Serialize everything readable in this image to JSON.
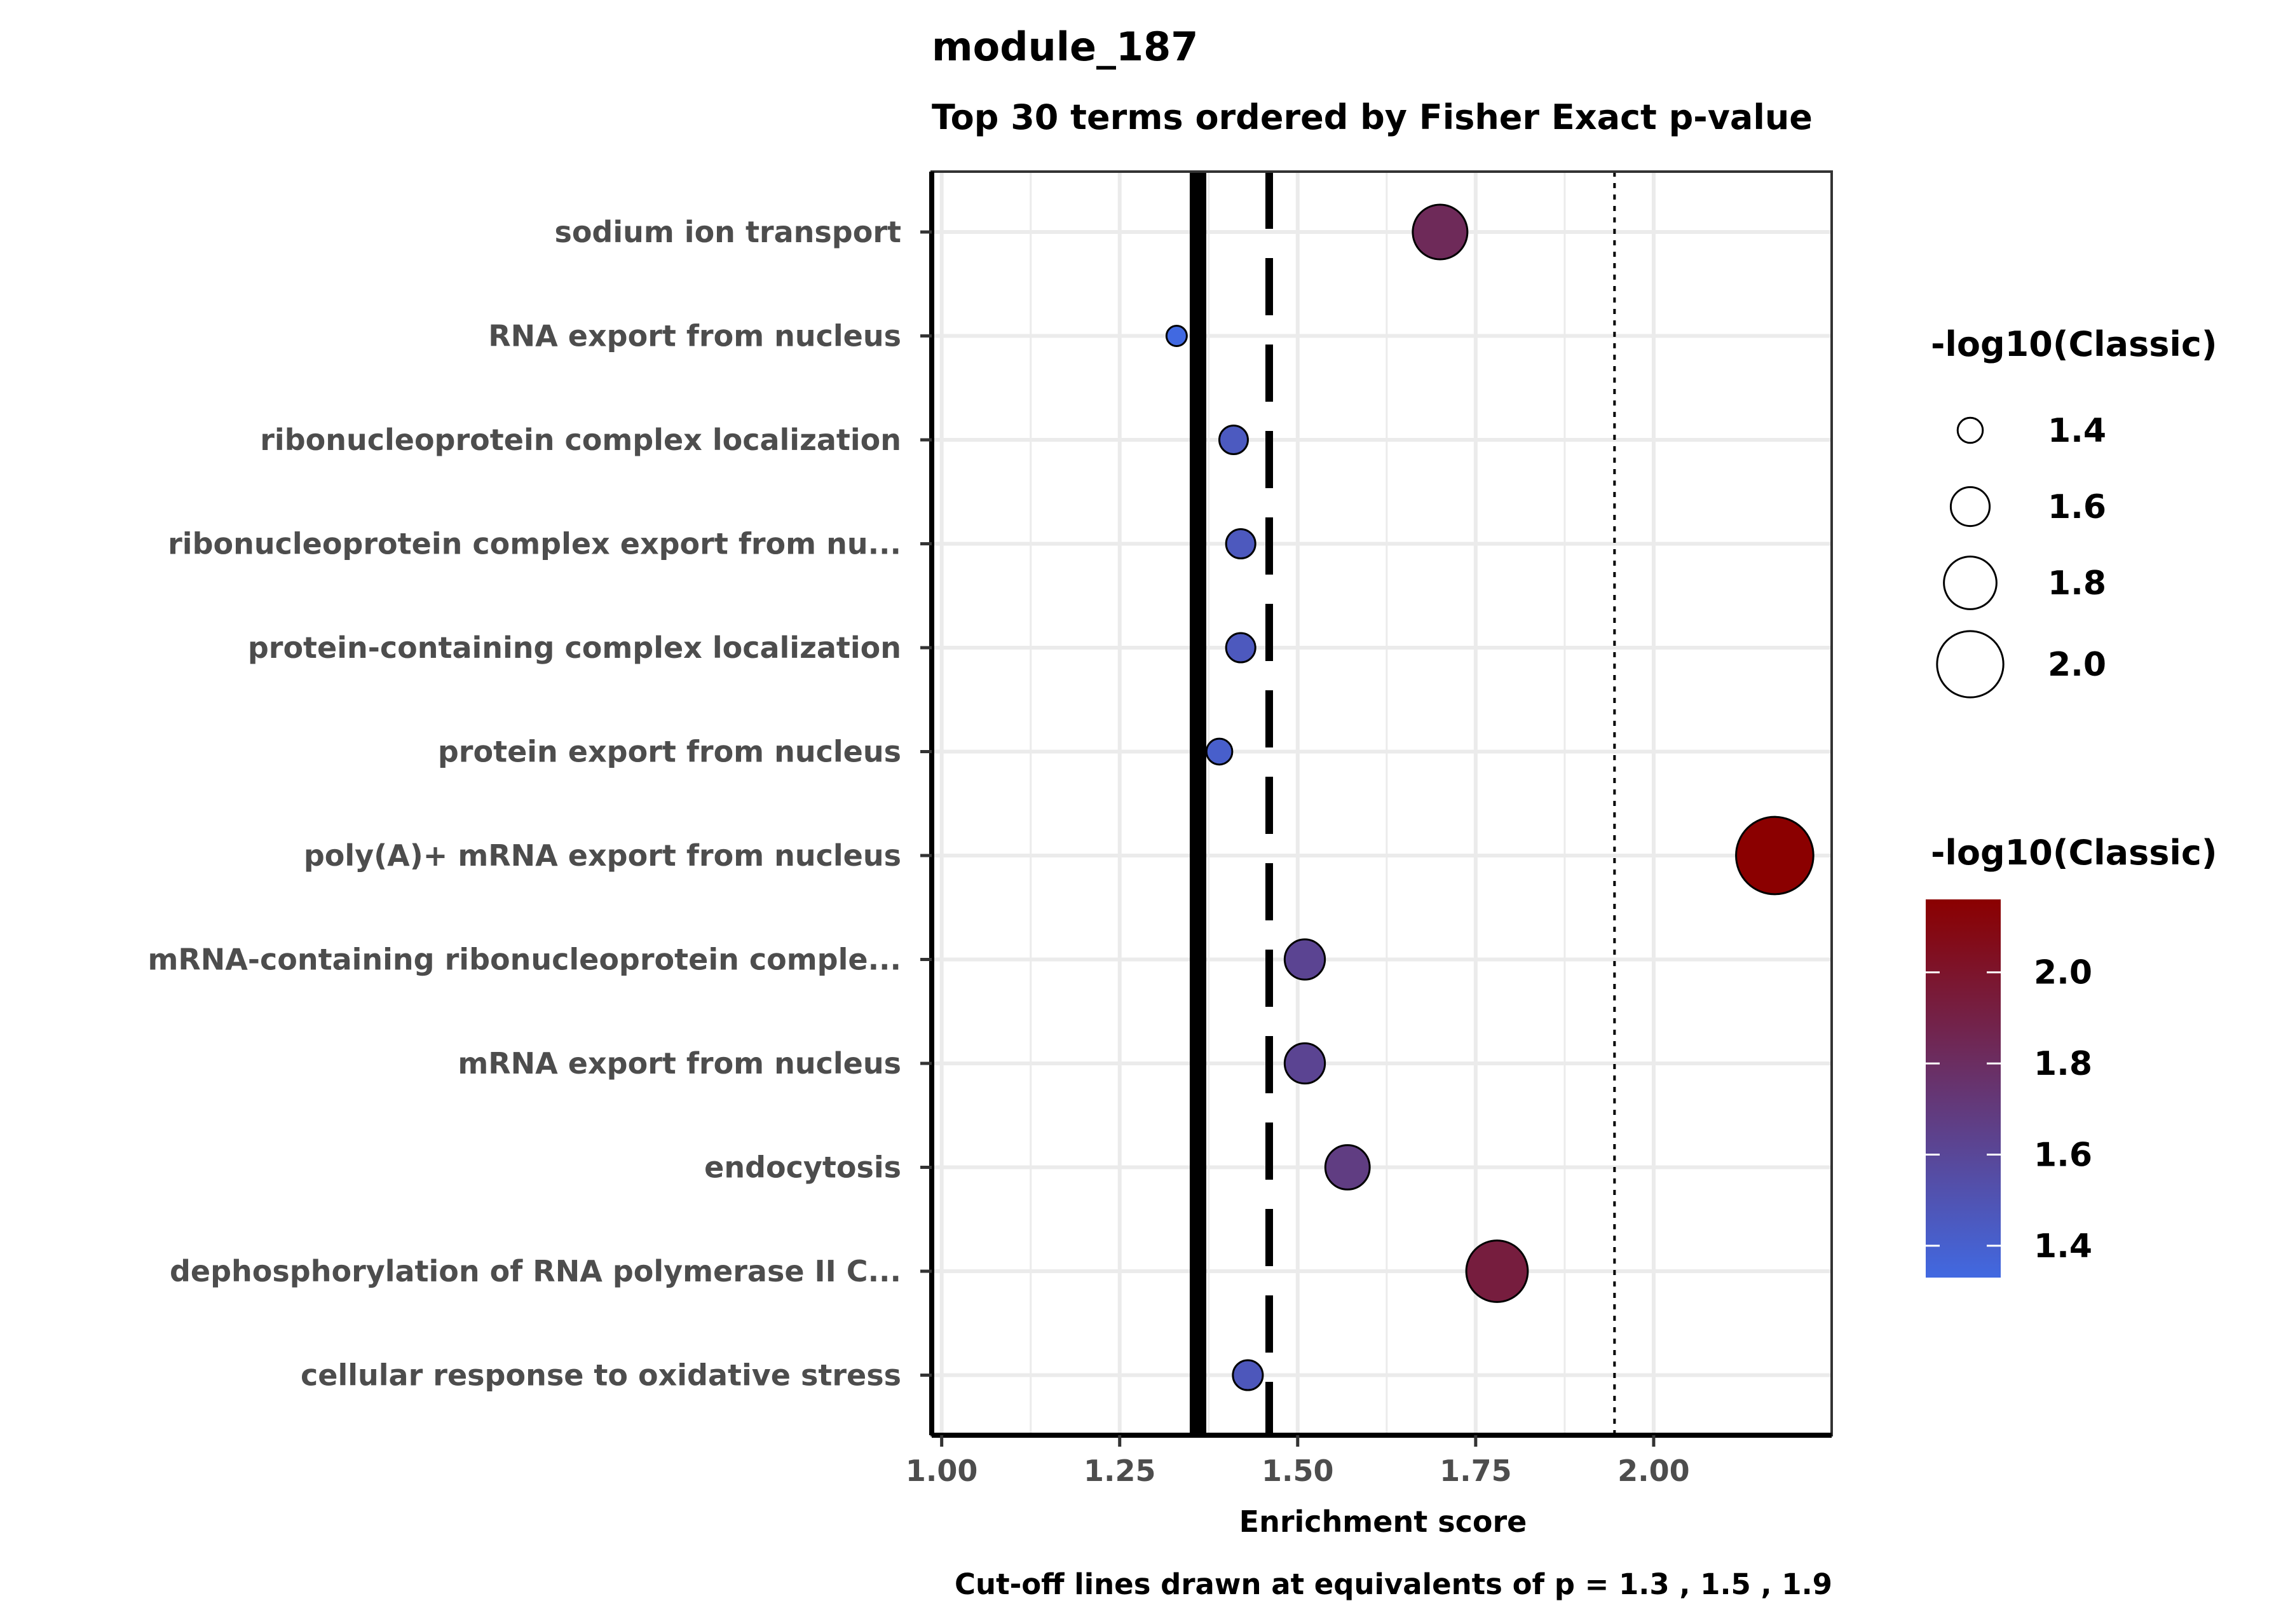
{
  "chart_data": {
    "type": "scatter",
    "title": "module_187",
    "subtitle": "Top 30 terms ordered by Fisher Exact p-value",
    "xlabel": "Enrichment score",
    "ylabel": "",
    "caption": "Cut-off lines drawn at equivalents of p = 1.3 , 1.5 , 1.9",
    "xlim": [
      0.986,
      2.25
    ],
    "xticks": [
      {
        "value": 1.0,
        "label": "1.00"
      },
      {
        "value": 1.25,
        "label": "1.25"
      },
      {
        "value": 1.5,
        "label": "1.50"
      },
      {
        "value": 1.75,
        "label": "1.75"
      },
      {
        "value": 2.0,
        "label": "2.00"
      }
    ],
    "grid": true,
    "cutoff_lines": [
      {
        "x": 1.36,
        "style": "solid"
      },
      {
        "x": 1.46,
        "style": "dashed"
      },
      {
        "x": 1.945,
        "style": "dotted"
      }
    ],
    "points": [
      {
        "term": "sodium ion transport",
        "x": 1.7,
        "neglog10": 1.83
      },
      {
        "term": "RNA export from nucleus",
        "x": 1.33,
        "neglog10": 1.33
      },
      {
        "term": "ribonucleoprotein complex localization",
        "x": 1.41,
        "neglog10": 1.45
      },
      {
        "term": "ribonucleoprotein complex export from nu...",
        "x": 1.42,
        "neglog10": 1.46
      },
      {
        "term": "protein-containing complex localization",
        "x": 1.42,
        "neglog10": 1.46
      },
      {
        "term": "protein export from nucleus",
        "x": 1.39,
        "neglog10": 1.41
      },
      {
        "term": "poly(A)+ mRNA export from nucleus",
        "x": 2.17,
        "neglog10": 2.16
      },
      {
        "term": "mRNA-containing ribonucleoprotein comple...",
        "x": 1.51,
        "neglog10": 1.62
      },
      {
        "term": "mRNA export from nucleus",
        "x": 1.51,
        "neglog10": 1.62
      },
      {
        "term": "endocytosis",
        "x": 1.57,
        "neglog10": 1.68
      },
      {
        "term": "dephosphorylation of RNA polymerase II C...",
        "x": 1.78,
        "neglog10": 1.93
      },
      {
        "term": "cellular response to oxidative stress",
        "x": 1.43,
        "neglog10": 1.47
      }
    ],
    "size_legend": {
      "title": "-log10(Classic)",
      "entries": [
        {
          "value": 1.4,
          "label": "1.4"
        },
        {
          "value": 1.6,
          "label": "1.6"
        },
        {
          "value": 1.8,
          "label": "1.8"
        },
        {
          "value": 2.0,
          "label": "2.0"
        }
      ]
    },
    "color_legend": {
      "title": "-log10(Classic)",
      "range": [
        1.33,
        2.16
      ],
      "low_color": "#4169E1",
      "high_color": "#8B0000",
      "ticks": [
        {
          "value": 1.4,
          "label": "1.4"
        },
        {
          "value": 1.6,
          "label": "1.6"
        },
        {
          "value": 1.8,
          "label": "1.8"
        },
        {
          "value": 2.0,
          "label": "2.0"
        }
      ]
    }
  }
}
